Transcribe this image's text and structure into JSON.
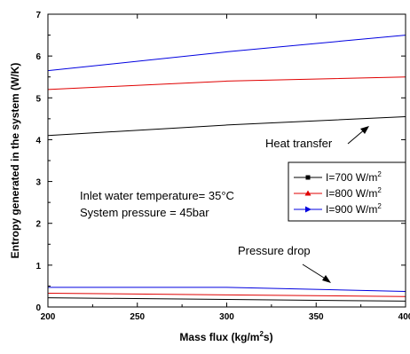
{
  "chart_data": {
    "type": "line",
    "xlabel": {
      "pre": "Mass flux (kg/m",
      "sup": "2",
      "post": "s)"
    },
    "ylabel": "Entropy generated in the system (W/K)",
    "xlim": [
      200,
      400
    ],
    "ylim": [
      0,
      7
    ],
    "xticks": [
      "200",
      "250",
      "300",
      "350",
      "400"
    ],
    "yticks": [
      "0",
      "1",
      "2",
      "3",
      "4",
      "5",
      "6",
      "7"
    ],
    "x": [
      200,
      300,
      400
    ],
    "series": [
      {
        "name_pre": "I=700 W/m",
        "name_sup": "2",
        "color": "#000000",
        "marker": "square",
        "group": "heat-transfer",
        "values": [
          4.1,
          4.35,
          4.55
        ]
      },
      {
        "name_pre": "I=800 W/m",
        "name_sup": "2",
        "color": "#e00000",
        "marker": "triangle-up",
        "group": "heat-transfer",
        "values": [
          5.2,
          5.4,
          5.5
        ]
      },
      {
        "name_pre": "I=900 W/m",
        "name_sup": "2",
        "color": "#0000e0",
        "marker": "triangle-right",
        "group": "heat-transfer",
        "values": [
          5.65,
          6.1,
          6.5
        ]
      },
      {
        "name_pre": "I=700 W/m",
        "name_sup": "2",
        "color": "#000000",
        "marker": "square",
        "group": "pressure-drop",
        "values": [
          0.22,
          0.18,
          0.14
        ]
      },
      {
        "name_pre": "I=800 W/m",
        "name_sup": "2",
        "color": "#e00000",
        "marker": "triangle-up",
        "group": "pressure-drop",
        "values": [
          0.33,
          0.29,
          0.25
        ]
      },
      {
        "name_pre": "I=900 W/m",
        "name_sup": "2",
        "color": "#0000e0",
        "marker": "triangle-right",
        "group": "pressure-drop",
        "values": [
          0.47,
          0.47,
          0.37
        ]
      }
    ],
    "legend_entries": [
      {
        "label_pre": "I=700 W/m",
        "label_sup": "2",
        "color": "#000000"
      },
      {
        "label_pre": "I=800 W/m",
        "label_sup": "2",
        "color": "#e00000"
      },
      {
        "label_pre": "I=900 W/m",
        "label_sup": "2",
        "color": "#0000e0"
      }
    ],
    "legend_position": "right",
    "annotations": {
      "heat_transfer": "Heat transfer",
      "pressure_drop": "Pressure drop",
      "inlet_temp": "Inlet water temperature= 35°C",
      "pressure": "System pressure = 45bar"
    },
    "grid": false
  }
}
